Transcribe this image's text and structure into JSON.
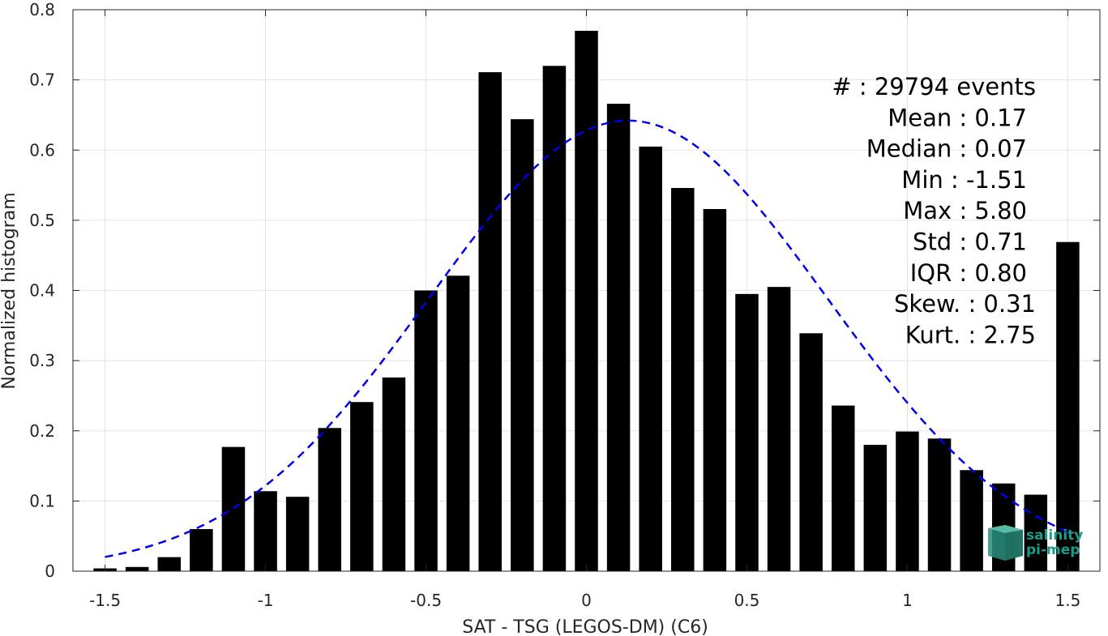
{
  "chart_data": {
    "type": "bar",
    "xlabel": "SAT - TSG (LEGOS-DM) (C6)",
    "ylabel": "Normalized histogram",
    "xlim": [
      -1.6,
      1.6
    ],
    "ylim": [
      0,
      0.8
    ],
    "xticks": [
      -1.5,
      -1,
      -0.5,
      0,
      0.5,
      1,
      1.5
    ],
    "xtick_labels": [
      "-1.5",
      "-1",
      "-0.5",
      "0",
      "0.5",
      "1",
      "1.5"
    ],
    "yticks": [
      0,
      0.1,
      0.2,
      0.3,
      0.4,
      0.5,
      0.6,
      0.7,
      0.8
    ],
    "ytick_labels": [
      "0",
      "0.1",
      "0.2",
      "0.3",
      "0.4",
      "0.5",
      "0.6",
      "0.7",
      "0.8"
    ],
    "grid": true,
    "bin_width": 0.1,
    "bar_color": "#000000",
    "bins": [
      -1.5,
      -1.4,
      -1.3,
      -1.2,
      -1.1,
      -1.0,
      -0.9,
      -0.8,
      -0.7,
      -0.6,
      -0.5,
      -0.4,
      -0.3,
      -0.2,
      -0.1,
      0.0,
      0.1,
      0.2,
      0.3,
      0.4,
      0.5,
      0.6,
      0.7,
      0.8,
      0.9,
      1.0,
      1.1,
      1.2,
      1.3,
      1.4,
      1.5
    ],
    "values": [
      0.004,
      0.006,
      0.02,
      0.06,
      0.177,
      0.114,
      0.106,
      0.204,
      0.241,
      0.276,
      0.4,
      0.421,
      0.711,
      0.644,
      0.72,
      0.77,
      0.666,
      0.605,
      0.546,
      0.516,
      0.395,
      0.405,
      0.339,
      0.236,
      0.18,
      0.199,
      0.189,
      0.144,
      0.125,
      0.109,
      0.469
    ],
    "fit_curve": {
      "style": "dashed",
      "color": "#0000ee",
      "mean": 0.13,
      "std": 0.62,
      "peak": 0.642,
      "x_range": [
        -1.5,
        1.5
      ]
    }
  },
  "stats": [
    "#  : 29794 events",
    "Mean : 0.17",
    "Median : 0.07",
    "Min : -1.51",
    "Max : 5.80",
    "Std : 0.71",
    "IQR : 0.80",
    "Skew. : 0.31",
    "Kurt. : 2.75"
  ],
  "logo": {
    "line1": "salinity",
    "line2": "pi-mep",
    "color": "#1a9e8a"
  }
}
